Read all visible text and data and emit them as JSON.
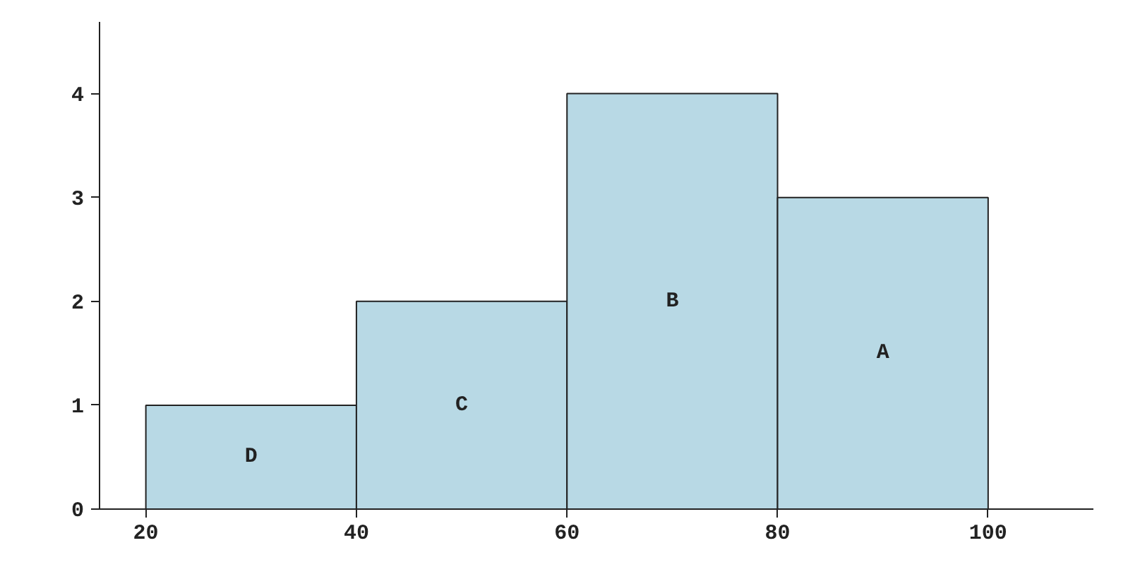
{
  "chart_data": {
    "type": "histogram",
    "bins": [
      20,
      40,
      60,
      80,
      100
    ],
    "values": [
      1,
      2,
      4,
      3
    ],
    "color": "#b8d9e5",
    "xlim": [
      15.6,
      110
    ],
    "ylim": [
      0,
      4.69
    ],
    "xticks": [
      20,
      40,
      60,
      80,
      100
    ],
    "yticks": [
      0,
      1,
      2,
      3,
      4
    ],
    "grid": false,
    "annotations": [
      "D",
      "C",
      "B",
      "A"
    ]
  }
}
